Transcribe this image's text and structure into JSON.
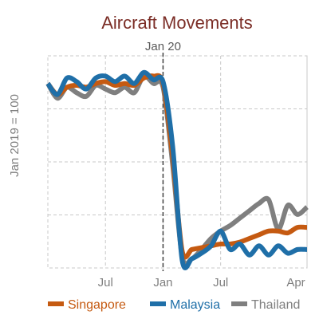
{
  "chart_data": {
    "type": "line",
    "title": "Aircraft Movements",
    "ylabel": "Jan 2019 = 100",
    "xlabel": "",
    "x_tick_labels": [
      "Jul",
      "Jan",
      "Jul",
      "Apr"
    ],
    "x": [
      "Jan 2019",
      "Feb 2019",
      "Mar 2019",
      "Apr 2019",
      "May 2019",
      "Jun 2019",
      "Jul 2019",
      "Aug 2019",
      "Sep 2019",
      "Oct 2019",
      "Nov 2019",
      "Dec 2019",
      "Jan 2020",
      "Feb 2020",
      "Mar 2020",
      "Apr 2020",
      "May 2020",
      "Jun 2020",
      "Jul 2020",
      "Aug 2020",
      "Sep 2020",
      "Oct 2020",
      "Nov 2020",
      "Dec 2020",
      "Jan 2021",
      "Feb 2021",
      "Mar 2021",
      "Apr 2021"
    ],
    "ylim": [
      0,
      115
    ],
    "grid": true,
    "legend_position": "bottom",
    "annotation": {
      "label": "Jan 20",
      "x": "Jan 2020",
      "style": "dashed vertical line"
    },
    "series": [
      {
        "name": "Singapore",
        "color": "#c55a11",
        "values": [
          100,
          94,
          98,
          99,
          98,
          100,
          101,
          99,
          100,
          99,
          103,
          104,
          100,
          60,
          9,
          10,
          11,
          12,
          13,
          13,
          14,
          16,
          18,
          20,
          20,
          19,
          22,
          22
        ]
      },
      {
        "name": "Malaysia",
        "color": "#1f6fa8",
        "values": [
          100,
          94,
          103,
          101,
          97,
          103,
          104,
          101,
          104,
          100,
          106,
          102,
          101,
          66,
          4,
          5,
          8,
          12,
          20,
          10,
          13,
          7,
          12,
          7,
          12,
          8,
          10,
          10
        ]
      },
      {
        "name": "Thailand",
        "color": "#7f7f7f",
        "values": [
          100,
          92,
          98,
          95,
          93,
          99,
          97,
          95,
          98,
          95,
          104,
          100,
          98,
          56,
          6,
          5,
          10,
          16,
          20,
          23,
          27,
          31,
          35,
          37,
          21,
          34,
          29,
          33
        ]
      }
    ],
    "legend": [
      "Singapore",
      "Malaysia",
      "Thailand"
    ],
    "colors": {
      "title": "#7b2d26",
      "annotation_line": "#404040",
      "text": "#7f7f7f",
      "grid": "#c8c8c8"
    }
  }
}
